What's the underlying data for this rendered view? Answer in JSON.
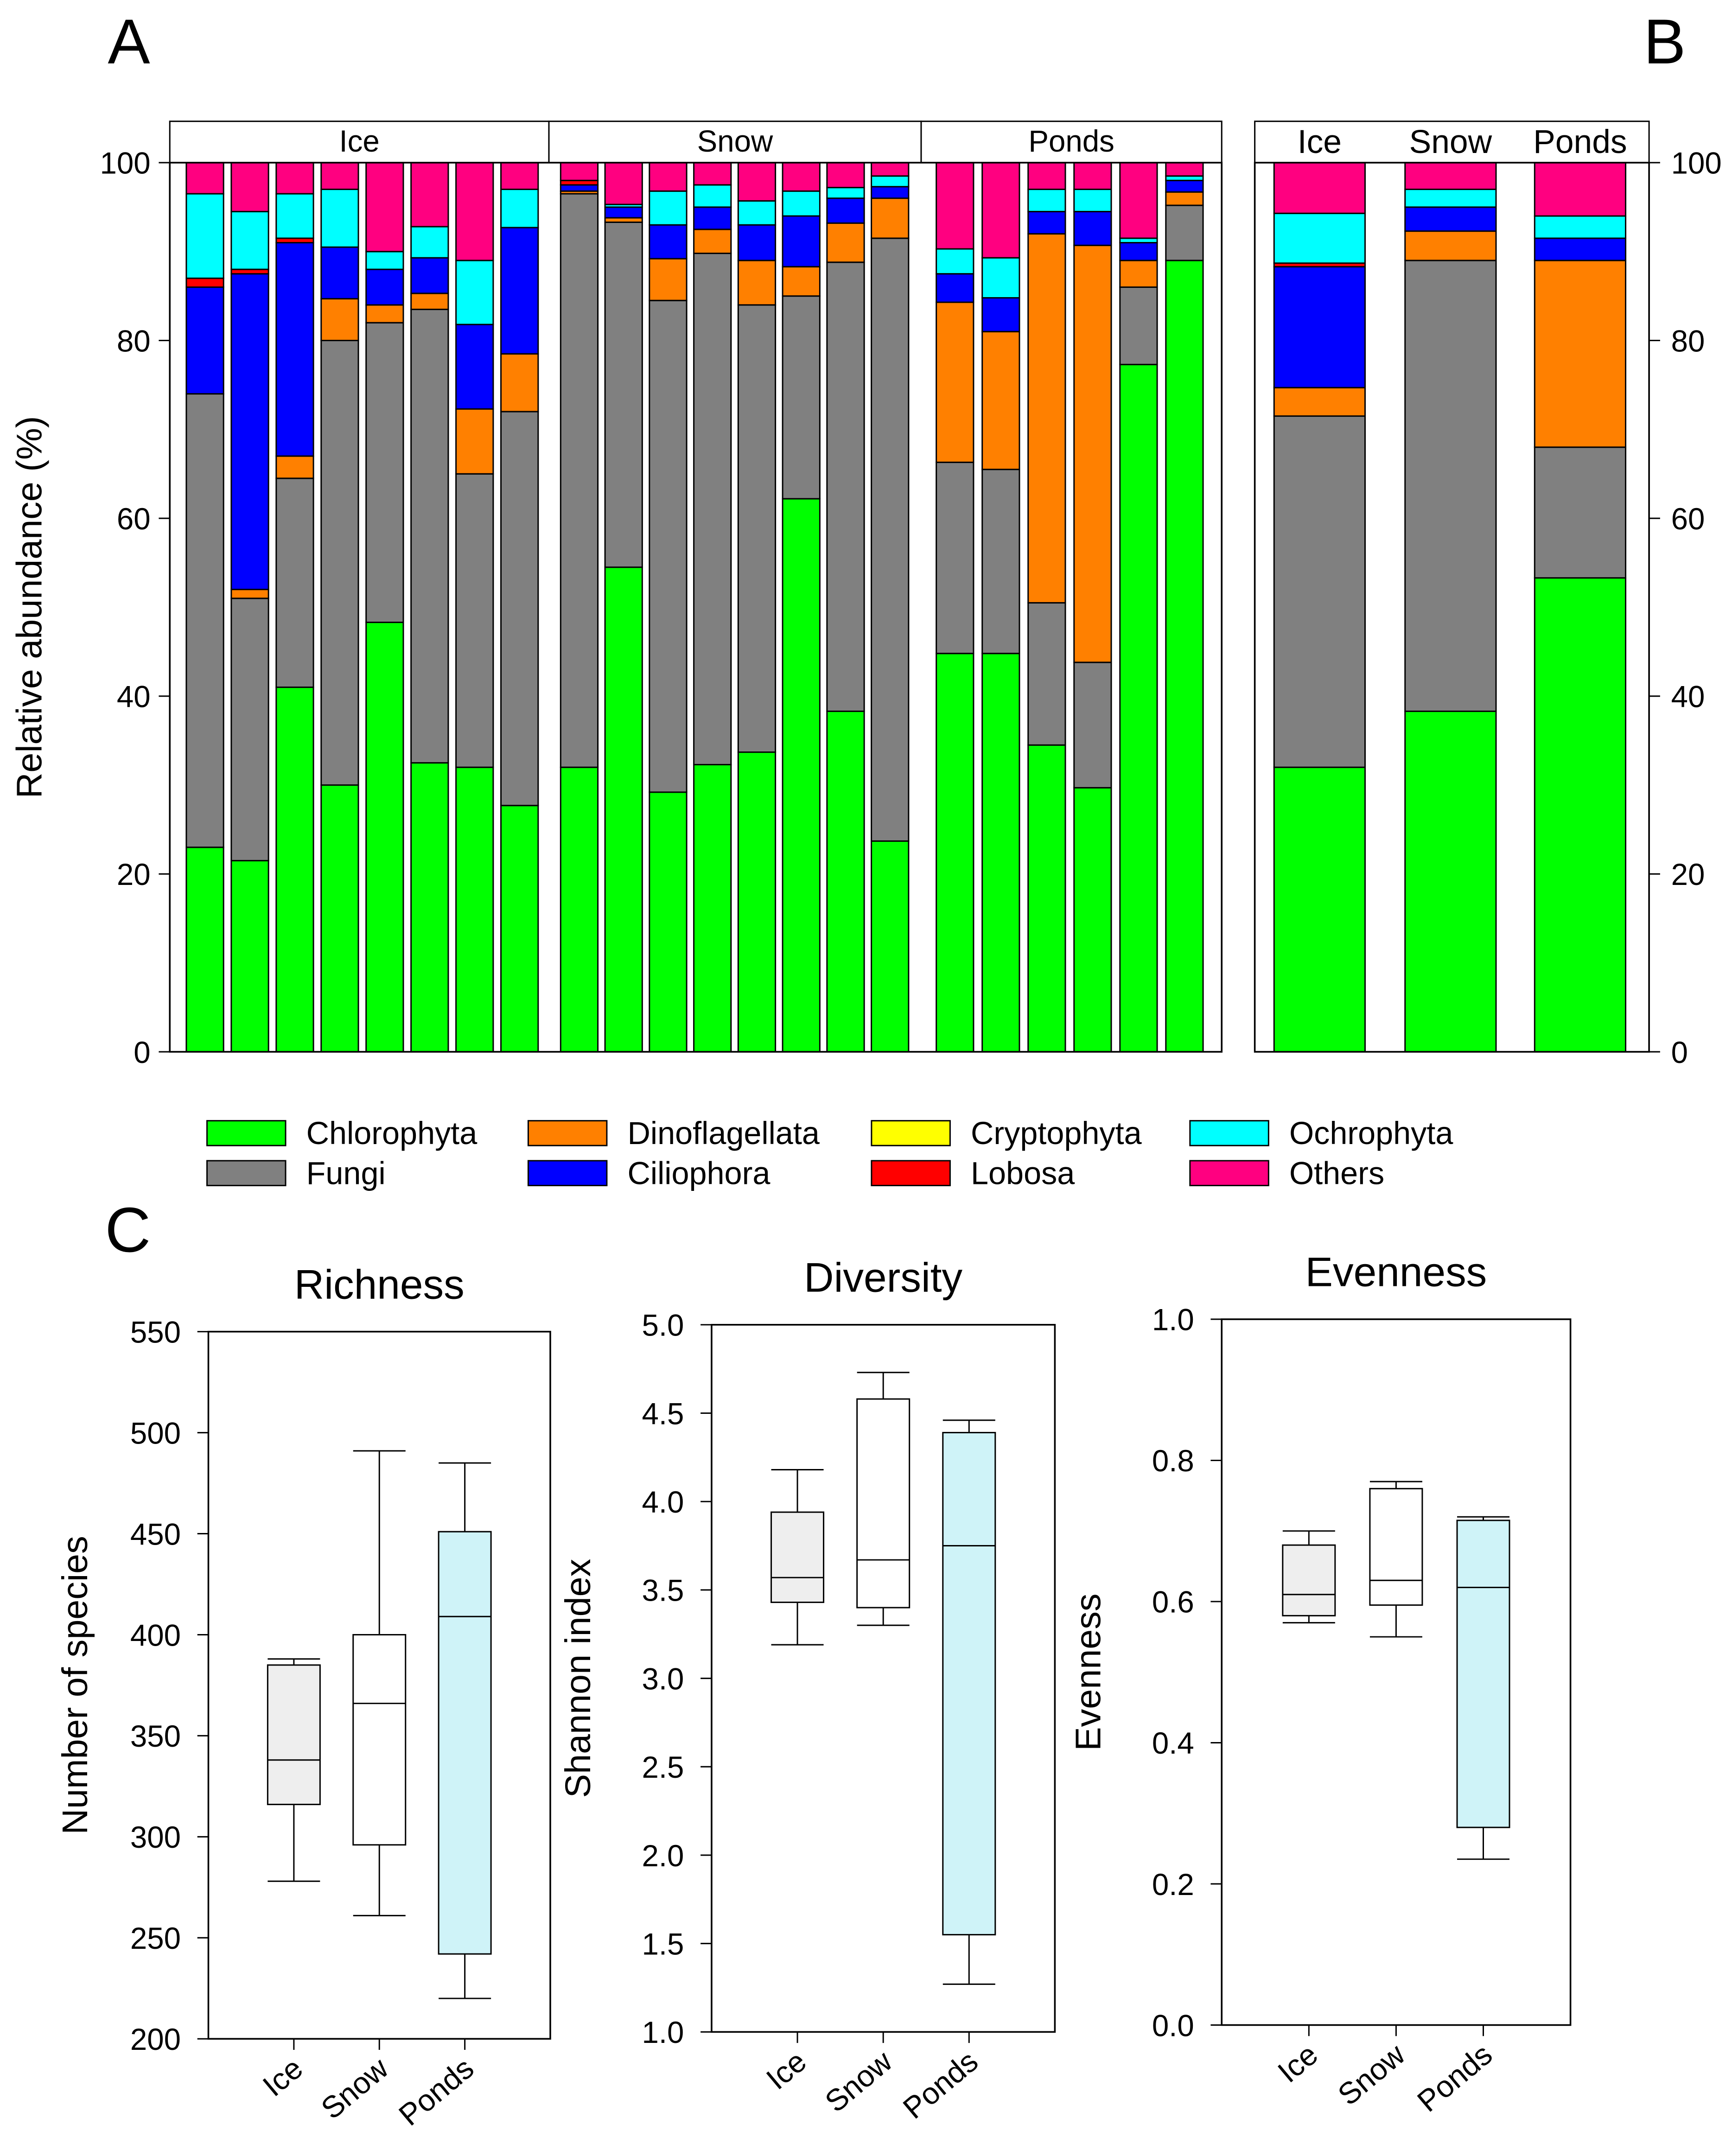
{
  "panel_labels": {
    "a": "A",
    "b": "B",
    "c": "C"
  },
  "colors": {
    "Chlorophyta": "#00ff00",
    "Fungi": "#808080",
    "Dinoflagellata": "#ff8000",
    "Cryptophyta": "#ffff00",
    "Ciliophora": "#0000ff",
    "Lobosa": "#ff0000",
    "Ochrophyta": "#00ffff",
    "Others": "#ff0080",
    "box_Ice": "#eeeeee",
    "box_Snow": "#ffffff",
    "box_Ponds": "#cff3f8"
  },
  "chart_data": [
    {
      "type": "bar",
      "stacked": true,
      "panel": "A",
      "ylabel": "Relative abundance (%)",
      "ylim": [
        0,
        100
      ],
      "yticks": [
        0,
        20,
        40,
        60,
        80,
        100
      ],
      "groups": [
        "Ice",
        "Snow",
        "Ponds"
      ],
      "group_sizes": [
        8,
        8,
        6
      ],
      "series_order": [
        "Chlorophyta",
        "Fungi",
        "Dinoflagellata",
        "Cryptophyta",
        "Ciliophora",
        "Lobosa",
        "Ochrophyta",
        "Others"
      ],
      "samples": [
        [
          23,
          51,
          0,
          0,
          12,
          1,
          9.5,
          3.5
        ],
        [
          21.5,
          29.5,
          1,
          0,
          35.5,
          0.5,
          6.5,
          5.5
        ],
        [
          41,
          23.5,
          2.5,
          0,
          24,
          0.5,
          5,
          3.5
        ],
        [
          30,
          50,
          4.7,
          0,
          5.8,
          0,
          6.5,
          3
        ],
        [
          48.3,
          33.7,
          2,
          0,
          4,
          0,
          2,
          10
        ],
        [
          32.5,
          51,
          1.8,
          0,
          4,
          0,
          3.5,
          7.2
        ],
        [
          32,
          33,
          7.3,
          0,
          9.5,
          0,
          7.2,
          11
        ],
        [
          27.7,
          44.3,
          6.5,
          0,
          14.2,
          0,
          4.3,
          3
        ],
        [
          32,
          64.5,
          0.3,
          0,
          0.7,
          0.5,
          0,
          2
        ],
        [
          54.5,
          38.8,
          0.5,
          0,
          1.2,
          0,
          0.3,
          4.7
        ],
        [
          29.2,
          55.3,
          4.7,
          0,
          3.8,
          0,
          3.8,
          3.2
        ],
        [
          32.3,
          57.5,
          2.7,
          0,
          2.5,
          0,
          2.5,
          2.5
        ],
        [
          33.7,
          50.3,
          5,
          0,
          4,
          0,
          2.7,
          4.3
        ],
        [
          62.2,
          22.8,
          3.3,
          0,
          5.7,
          0,
          2.8,
          3.2
        ],
        [
          38.3,
          50.5,
          4.4,
          0,
          2.8,
          0,
          1.2,
          2.8
        ],
        [
          23.7,
          67.8,
          4.5,
          0,
          1.3,
          0,
          1.2,
          1.5
        ],
        [
          44.8,
          21.5,
          18,
          0,
          3.2,
          0,
          2.8,
          9.7
        ],
        [
          44.8,
          20.7,
          15.5,
          0,
          3.8,
          0,
          4.5,
          10.7
        ],
        [
          34.5,
          16,
          41.5,
          0,
          2.5,
          0,
          2.5,
          3
        ],
        [
          29.7,
          14.1,
          46.9,
          0,
          3.8,
          0,
          2.5,
          3
        ],
        [
          77.3,
          8.7,
          3,
          0,
          2,
          0,
          0.5,
          8.5
        ],
        [
          89,
          6.2,
          1.5,
          0,
          1.3,
          0,
          0.5,
          1.5
        ]
      ]
    },
    {
      "type": "bar",
      "stacked": true,
      "panel": "B",
      "ylim": [
        0,
        100
      ],
      "yticks": [
        0,
        20,
        40,
        60,
        80,
        100
      ],
      "categories": [
        "Ice",
        "Snow",
        "Ponds"
      ],
      "series": [
        {
          "name": "Chlorophyta",
          "values": [
            32,
            38.3,
            53.3
          ]
        },
        {
          "name": "Fungi",
          "values": [
            39.5,
            50.7,
            14.7
          ]
        },
        {
          "name": "Dinoflagellata",
          "values": [
            3.2,
            3.3,
            21
          ]
        },
        {
          "name": "Cryptophyta",
          "values": [
            0,
            0,
            0
          ]
        },
        {
          "name": "Ciliophora",
          "values": [
            13.6,
            2.7,
            2.5
          ]
        },
        {
          "name": "Lobosa",
          "values": [
            0.4,
            0,
            0
          ]
        },
        {
          "name": "Ochrophyta",
          "values": [
            5.6,
            2,
            2.5
          ]
        },
        {
          "name": "Others",
          "values": [
            5.7,
            3,
            6
          ]
        }
      ]
    },
    {
      "type": "box",
      "panel": "C",
      "title": "Richness",
      "ylabel": "Number of species",
      "ylim": [
        200,
        550
      ],
      "yticks": [
        200,
        250,
        300,
        350,
        400,
        450,
        500,
        550
      ],
      "categories": [
        "Ice",
        "Snow",
        "Ponds"
      ],
      "boxes": [
        {
          "min": 278,
          "q1": 316,
          "median": 338,
          "q3": 385,
          "max": 388
        },
        {
          "min": 261,
          "q1": 296,
          "median": 366,
          "q3": 400,
          "max": 491
        },
        {
          "min": 220,
          "q1": 242,
          "median": 409,
          "q3": 451,
          "max": 485
        }
      ]
    },
    {
      "type": "box",
      "panel": "C",
      "title": "Diversity",
      "ylabel": "Shannon index",
      "ylim": [
        1.0,
        5.0
      ],
      "yticks": [
        "1.0",
        "1.5",
        "2.0",
        "2.5",
        "3.0",
        "3.5",
        "4.0",
        "4.5",
        "5.0"
      ],
      "categories": [
        "Ice",
        "Snow",
        "Ponds"
      ],
      "boxes": [
        {
          "min": 3.19,
          "q1": 3.43,
          "median": 3.57,
          "q3": 3.94,
          "max": 4.18
        },
        {
          "min": 3.3,
          "q1": 3.4,
          "median": 3.67,
          "q3": 4.58,
          "max": 4.73
        },
        {
          "min": 1.27,
          "q1": 1.55,
          "median": 3.75,
          "q3": 4.39,
          "max": 4.46
        }
      ]
    },
    {
      "type": "box",
      "panel": "C",
      "title": "Evenness",
      "ylabel": "Evenness",
      "ylim": [
        0.0,
        1.0
      ],
      "yticks": [
        "0.0",
        "0.2",
        "0.4",
        "0.6",
        "0.8",
        "1.0"
      ],
      "categories": [
        "Ice",
        "Snow",
        "Ponds"
      ],
      "boxes": [
        {
          "min": 0.57,
          "q1": 0.58,
          "median": 0.61,
          "q3": 0.68,
          "max": 0.7
        },
        {
          "min": 0.55,
          "q1": 0.595,
          "median": 0.63,
          "q3": 0.76,
          "max": 0.77
        },
        {
          "min": 0.235,
          "q1": 0.28,
          "median": 0.62,
          "q3": 0.715,
          "max": 0.72
        }
      ]
    }
  ],
  "legend": [
    "Chlorophyta",
    "Fungi",
    "Dinoflagellata",
    "Ciliophora",
    "Cryptophyta",
    "Lobosa",
    "Ochrophyta",
    "Others"
  ]
}
